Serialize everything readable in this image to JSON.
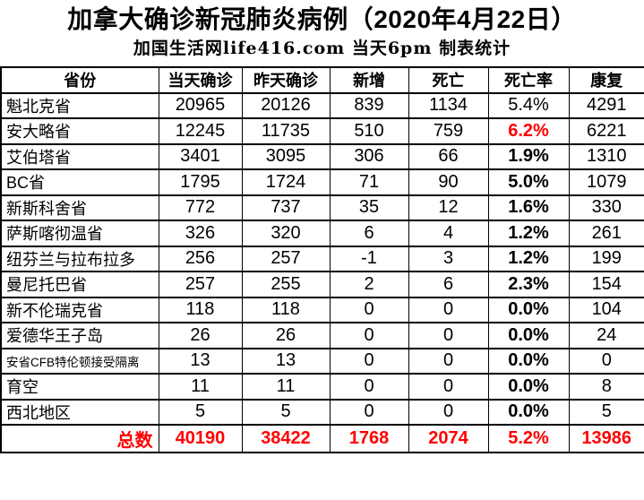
{
  "colors": {
    "accent_red": "#ff0000",
    "ink": "#000000",
    "background": "#ffffff"
  },
  "chart_data": {
    "type": "table",
    "title": "加拿大确诊新冠肺炎病例（2020年4月22日）",
    "subtitle": "加国生活网life416.com 当天6pm 制表统计",
    "columns": [
      "省份",
      "当天确诊",
      "昨天确诊",
      "新增",
      "死亡",
      "死亡率",
      "康复"
    ],
    "rows": [
      {
        "province": "魁北克省",
        "today": "20965",
        "yesterday": "20126",
        "new": "839",
        "deaths": "1134",
        "death_rate": "5.4%",
        "recovered": "4291",
        "rate_style": "normal",
        "small_label": false
      },
      {
        "province": "安大略省",
        "today": "12245",
        "yesterday": "11735",
        "new": "510",
        "deaths": "759",
        "death_rate": "6.2%",
        "recovered": "6221",
        "rate_style": "red",
        "small_label": false
      },
      {
        "province": "艾伯塔省",
        "today": "3401",
        "yesterday": "3095",
        "new": "306",
        "deaths": "66",
        "death_rate": "1.9%",
        "recovered": "1310",
        "rate_style": "bold",
        "small_label": false
      },
      {
        "province": "BC省",
        "today": "1795",
        "yesterday": "1724",
        "new": "71",
        "deaths": "90",
        "death_rate": "5.0%",
        "recovered": "1079",
        "rate_style": "bold",
        "small_label": false
      },
      {
        "province": "新斯科舍省",
        "today": "772",
        "yesterday": "737",
        "new": "35",
        "deaths": "12",
        "death_rate": "1.6%",
        "recovered": "330",
        "rate_style": "bold",
        "small_label": false
      },
      {
        "province": "萨斯喀彻温省",
        "today": "326",
        "yesterday": "320",
        "new": "6",
        "deaths": "4",
        "death_rate": "1.2%",
        "recovered": "261",
        "rate_style": "bold",
        "small_label": false
      },
      {
        "province": "纽芬兰与拉布拉多",
        "today": "256",
        "yesterday": "257",
        "new": "-1",
        "deaths": "3",
        "death_rate": "1.2%",
        "recovered": "199",
        "rate_style": "bold",
        "small_label": false
      },
      {
        "province": "曼尼托巴省",
        "today": "257",
        "yesterday": "255",
        "new": "2",
        "deaths": "6",
        "death_rate": "2.3%",
        "recovered": "154",
        "rate_style": "bold",
        "small_label": false
      },
      {
        "province": "新不伦瑞克省",
        "today": "118",
        "yesterday": "118",
        "new": "0",
        "deaths": "0",
        "death_rate": "0.0%",
        "recovered": "104",
        "rate_style": "bold",
        "small_label": false
      },
      {
        "province": "爱德华王子岛",
        "today": "26",
        "yesterday": "26",
        "new": "0",
        "deaths": "0",
        "death_rate": "0.0%",
        "recovered": "24",
        "rate_style": "bold",
        "small_label": false
      },
      {
        "province": "安省CFB特伦顿接受隔离",
        "today": "13",
        "yesterday": "13",
        "new": "0",
        "deaths": "0",
        "death_rate": "0.0%",
        "recovered": "0",
        "rate_style": "bold",
        "small_label": true
      },
      {
        "province": "育空",
        "today": "11",
        "yesterday": "11",
        "new": "0",
        "deaths": "0",
        "death_rate": "0.0%",
        "recovered": "8",
        "rate_style": "bold",
        "small_label": false
      },
      {
        "province": "西北地区",
        "today": "5",
        "yesterday": "5",
        "new": "0",
        "deaths": "0",
        "death_rate": "0.0%",
        "recovered": "5",
        "rate_style": "bold",
        "small_label": false
      }
    ],
    "total": {
      "label": "总数",
      "today": "40190",
      "yesterday": "38422",
      "new": "1768",
      "deaths": "2074",
      "death_rate": "5.2%",
      "recovered": "13986"
    }
  }
}
